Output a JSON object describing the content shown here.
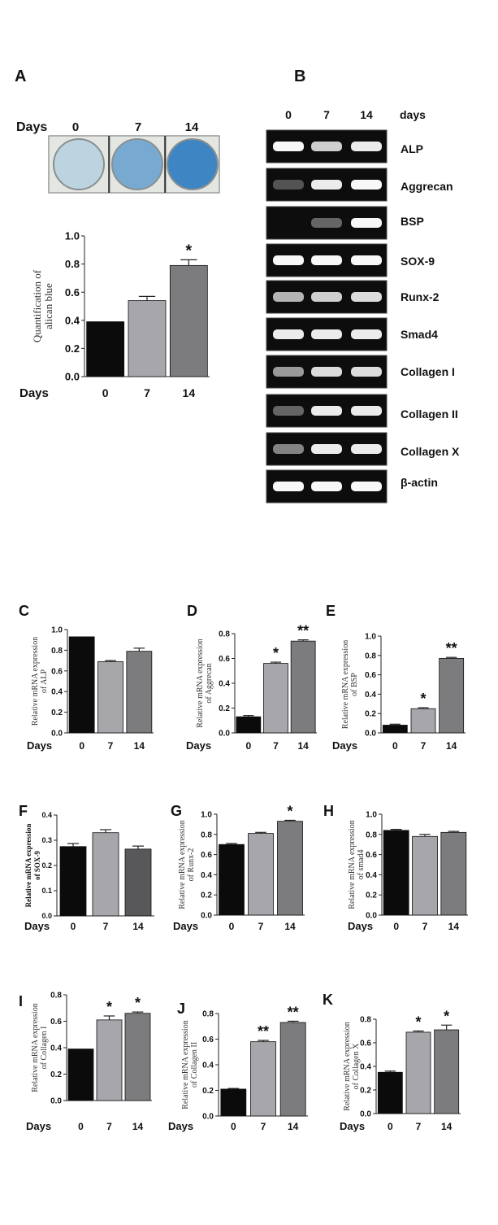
{
  "colors": {
    "day0": "#0b0b0b",
    "day7": "#a7a6ab",
    "day14": "#7c7c7e",
    "day14_F": "#58585a",
    "stain": "#3f97c8"
  },
  "panel_A": {
    "label": "A",
    "stain_header": {
      "label": "Days",
      "days": [
        "0",
        "7",
        "14"
      ]
    },
    "wells_intensity": [
      0.35,
      0.7,
      1.0
    ]
  },
  "panel_B": {
    "label": "B",
    "lanes": [
      "0",
      "7",
      "14"
    ],
    "lanes_unit": "days",
    "genes": [
      {
        "name": "ALP",
        "band_intensity": [
          0.95,
          0.8,
          0.9
        ]
      },
      {
        "name": "Aggrecan",
        "band_intensity": [
          0.25,
          0.9,
          0.95
        ]
      },
      {
        "name": "BSP",
        "band_intensity": [
          0.05,
          0.35,
          0.95
        ]
      },
      {
        "name": "SOX-9",
        "band_intensity": [
          0.95,
          0.95,
          0.95
        ]
      },
      {
        "name": "Runx-2",
        "band_intensity": [
          0.7,
          0.8,
          0.85
        ]
      },
      {
        "name": "Smad4",
        "band_intensity": [
          0.9,
          0.9,
          0.9
        ]
      },
      {
        "name": "Collagen I",
        "band_intensity": [
          0.6,
          0.85,
          0.85
        ]
      },
      {
        "name": "Collagen II",
        "band_intensity": [
          0.35,
          0.9,
          0.9
        ]
      },
      {
        "name": "Collagen X",
        "band_intensity": [
          0.5,
          0.9,
          0.9
        ]
      },
      {
        "name": "β-actin",
        "band_intensity": [
          0.95,
          0.95,
          0.95
        ]
      }
    ]
  },
  "chart_data": [
    {
      "id": "A",
      "label": "",
      "type": "bar",
      "categories": [
        "0",
        "7",
        "14"
      ],
      "xlabel": "Days",
      "ylabel": [
        "Quantification of",
        "alican blue"
      ],
      "ylim": [
        0,
        1.0
      ],
      "yticks": [
        "0.0",
        "0.2",
        "0.4",
        "0.6",
        "0.8",
        "1.0"
      ],
      "values": [
        0.39,
        0.54,
        0.79
      ],
      "errors": [
        0,
        0.03,
        0.04
      ],
      "sig": [
        "",
        "",
        "*"
      ]
    },
    {
      "id": "C",
      "label": "C",
      "type": "bar",
      "categories": [
        "0",
        "7",
        "14"
      ],
      "xlabel": "Days",
      "ylabel": [
        "Relative mRNA expression",
        "of ALP"
      ],
      "ylim": [
        0,
        1.0
      ],
      "yticks": [
        "0.0",
        "0.2",
        "0.4",
        "0.6",
        "0.8",
        "1.0"
      ],
      "values": [
        0.93,
        0.69,
        0.79
      ],
      "errors": [
        0,
        0.01,
        0.03
      ],
      "sig": [
        "",
        "",
        ""
      ]
    },
    {
      "id": "D",
      "label": "D",
      "type": "bar",
      "categories": [
        "0",
        "7",
        "14"
      ],
      "xlabel": "Days",
      "ylabel": [
        "Relative mRNA expression",
        "of Aggrecan"
      ],
      "ylim": [
        0,
        0.8
      ],
      "yticks": [
        "0.0",
        "0.2",
        "0.4",
        "0.6",
        "0.8"
      ],
      "values": [
        0.13,
        0.56,
        0.74
      ],
      "errors": [
        0.01,
        0.01,
        0.01
      ],
      "sig": [
        "",
        "*",
        "**"
      ]
    },
    {
      "id": "E",
      "label": "E",
      "type": "bar",
      "categories": [
        "0",
        "7",
        "14"
      ],
      "xlabel": "Days",
      "ylabel": [
        "Relative mRNA expression",
        "of BSP"
      ],
      "ylim": [
        0,
        1.0
      ],
      "yticks": [
        "0.0",
        "0.2",
        "0.4",
        "0.6",
        "0.8",
        "1.0"
      ],
      "values": [
        0.08,
        0.25,
        0.77
      ],
      "errors": [
        0.01,
        0.01,
        0.01
      ],
      "sig": [
        "",
        "*",
        "**"
      ]
    },
    {
      "id": "F",
      "label": "F",
      "type": "bar",
      "categories": [
        "0",
        "7",
        "14"
      ],
      "xlabel": "Days",
      "ylabel": [
        "Relative mRNA expression",
        "of SOX-9"
      ],
      "ylim": [
        0,
        0.4
      ],
      "yticks": [
        "0.0",
        "0.1",
        "0.2",
        "0.3",
        "0.4"
      ],
      "values": [
        0.275,
        0.33,
        0.265
      ],
      "errors": [
        0.012,
        0.012,
        0.012
      ],
      "sig": [
        "",
        "",
        ""
      ]
    },
    {
      "id": "G",
      "label": "G",
      "type": "bar",
      "categories": [
        "0",
        "7",
        "14"
      ],
      "xlabel": "Days",
      "ylabel": [
        "Relative mRNA expression",
        "of Runx-2"
      ],
      "ylim": [
        0,
        1.0
      ],
      "yticks": [
        "0.0",
        "0.2",
        "0.4",
        "0.6",
        "0.8",
        "1.0"
      ],
      "values": [
        0.7,
        0.81,
        0.93
      ],
      "errors": [
        0.01,
        0.01,
        0.01
      ],
      "sig": [
        "",
        "",
        "*"
      ]
    },
    {
      "id": "H",
      "label": "H",
      "type": "bar",
      "categories": [
        "0",
        "7",
        "14"
      ],
      "xlabel": "Days",
      "ylabel": [
        "Relative mRNA expression",
        "of smad4"
      ],
      "ylim": [
        0,
        1.0
      ],
      "yticks": [
        "0.0",
        "0.2",
        "0.4",
        "0.6",
        "0.8",
        "1.0"
      ],
      "values": [
        0.84,
        0.78,
        0.82
      ],
      "errors": [
        0.01,
        0.02,
        0.01
      ],
      "sig": [
        "",
        "",
        ""
      ]
    },
    {
      "id": "I",
      "label": "I",
      "type": "bar",
      "categories": [
        "0",
        "7",
        "14"
      ],
      "xlabel": "Days",
      "ylabel": [
        "Relative mRNA expression",
        "of Collagen I"
      ],
      "ylim": [
        0,
        0.8
      ],
      "yticks": [
        "0.0",
        "0.2",
        "0.4",
        "0.6",
        "0.8"
      ],
      "values": [
        0.39,
        0.61,
        0.66
      ],
      "errors": [
        0,
        0.03,
        0.01
      ],
      "sig": [
        "",
        "*",
        "*"
      ]
    },
    {
      "id": "J",
      "label": "J",
      "type": "bar",
      "categories": [
        "0",
        "7",
        "14"
      ],
      "xlabel": "Days",
      "ylabel": [
        "Relative mRNA expression",
        "of Collagen II"
      ],
      "ylim": [
        0,
        0.8
      ],
      "yticks": [
        "0.0",
        "0.2",
        "0.4",
        "0.6",
        "0.8"
      ],
      "values": [
        0.21,
        0.58,
        0.73
      ],
      "errors": [
        0.005,
        0.01,
        0.01
      ],
      "sig": [
        "",
        "**",
        "**"
      ]
    },
    {
      "id": "K",
      "label": "K",
      "type": "bar",
      "categories": [
        "0",
        "7",
        "14"
      ],
      "xlabel": "Days",
      "ylabel": [
        "Relative mRNA expression",
        "of Collagen X"
      ],
      "ylim": [
        0,
        0.8
      ],
      "yticks": [
        "0.0",
        "0.2",
        "0.4",
        "0.6",
        "0.8"
      ],
      "values": [
        0.35,
        0.69,
        0.71
      ],
      "errors": [
        0.01,
        0.01,
        0.04
      ],
      "sig": [
        "",
        "*",
        "*"
      ]
    }
  ]
}
